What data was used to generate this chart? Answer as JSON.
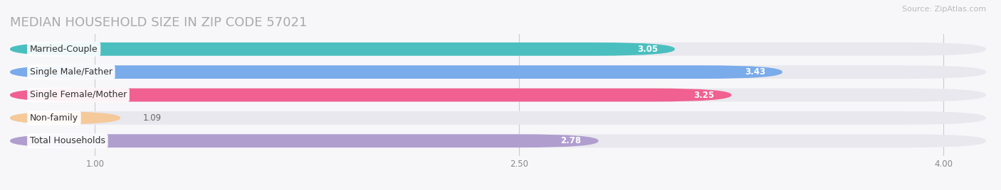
{
  "title": "MEDIAN HOUSEHOLD SIZE IN ZIP CODE 57021",
  "source": "Source: ZipAtlas.com",
  "categories": [
    "Married-Couple",
    "Single Male/Father",
    "Single Female/Mother",
    "Non-family",
    "Total Households"
  ],
  "values": [
    3.05,
    3.43,
    3.25,
    1.09,
    2.78
  ],
  "bar_colors": [
    "#4bbfbf",
    "#7aabea",
    "#f06090",
    "#f5c99a",
    "#b09ecf"
  ],
  "value_colors": [
    "white",
    "white",
    "white",
    "#777777",
    "white"
  ],
  "xlim_left": 0.7,
  "xlim_right": 4.15,
  "xticks": [
    1.0,
    2.5,
    4.0
  ],
  "background_color": "#f7f7fa",
  "bar_bg_color": "#e8e8ee",
  "title_fontsize": 13,
  "label_fontsize": 9,
  "value_fontsize": 8.5,
  "source_fontsize": 8
}
